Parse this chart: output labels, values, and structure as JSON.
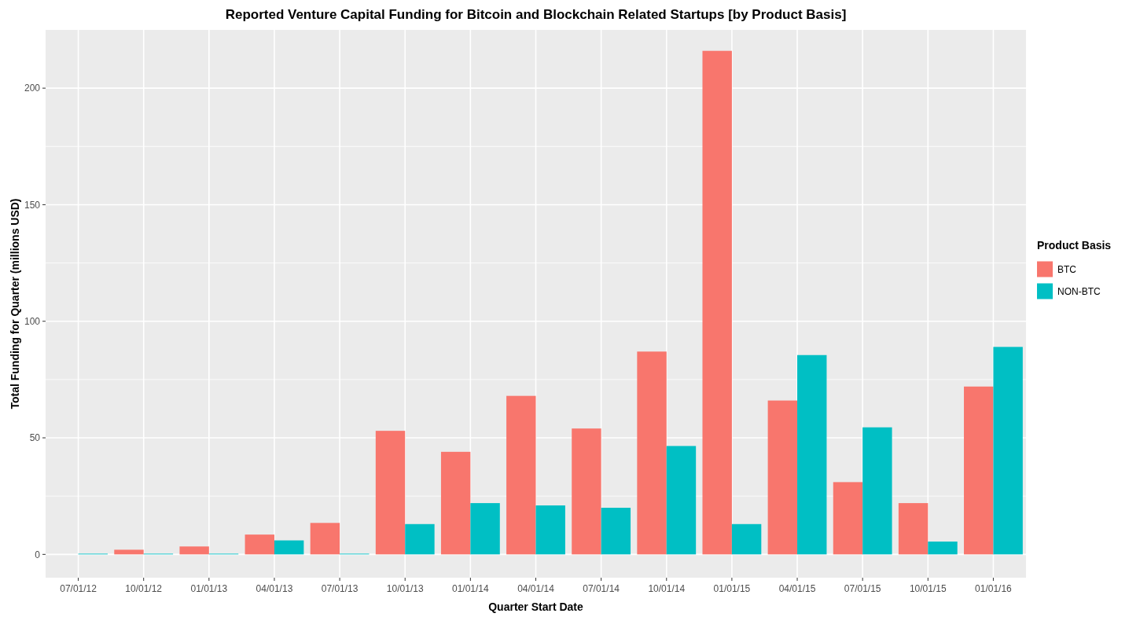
{
  "chart_data": {
    "type": "bar",
    "title": "Reported Venture Capital Funding for Bitcoin and Blockchain Related Startups [by Product Basis]",
    "xlabel": "Quarter Start Date",
    "ylabel": "Total Funding for Quarter (millions USD)",
    "legend_title": "Product Basis",
    "categories": [
      "07/01/12",
      "10/01/12",
      "01/01/13",
      "04/01/13",
      "07/01/13",
      "10/01/13",
      "01/01/14",
      "04/01/14",
      "07/01/14",
      "10/01/14",
      "01/01/15",
      "04/01/15",
      "07/01/15",
      "10/01/15",
      "01/01/16"
    ],
    "series": [
      {
        "name": "BTC",
        "color": "#f8766d",
        "values": [
          null,
          2,
          3.4,
          8.5,
          13.5,
          53,
          44,
          68,
          54,
          87,
          216,
          66,
          31,
          22,
          72
        ]
      },
      {
        "name": "NON-BTC",
        "color": "#00bfc4",
        "values": [
          0.3,
          0.3,
          0.3,
          6,
          0.3,
          13,
          22,
          21,
          20,
          46.5,
          13,
          85.5,
          54.5,
          5.5,
          89
        ]
      }
    ],
    "ylim": [
      -10,
      225
    ],
    "yticks": [
      0,
      50,
      100,
      150,
      200
    ],
    "grid": true,
    "legend": "right"
  }
}
